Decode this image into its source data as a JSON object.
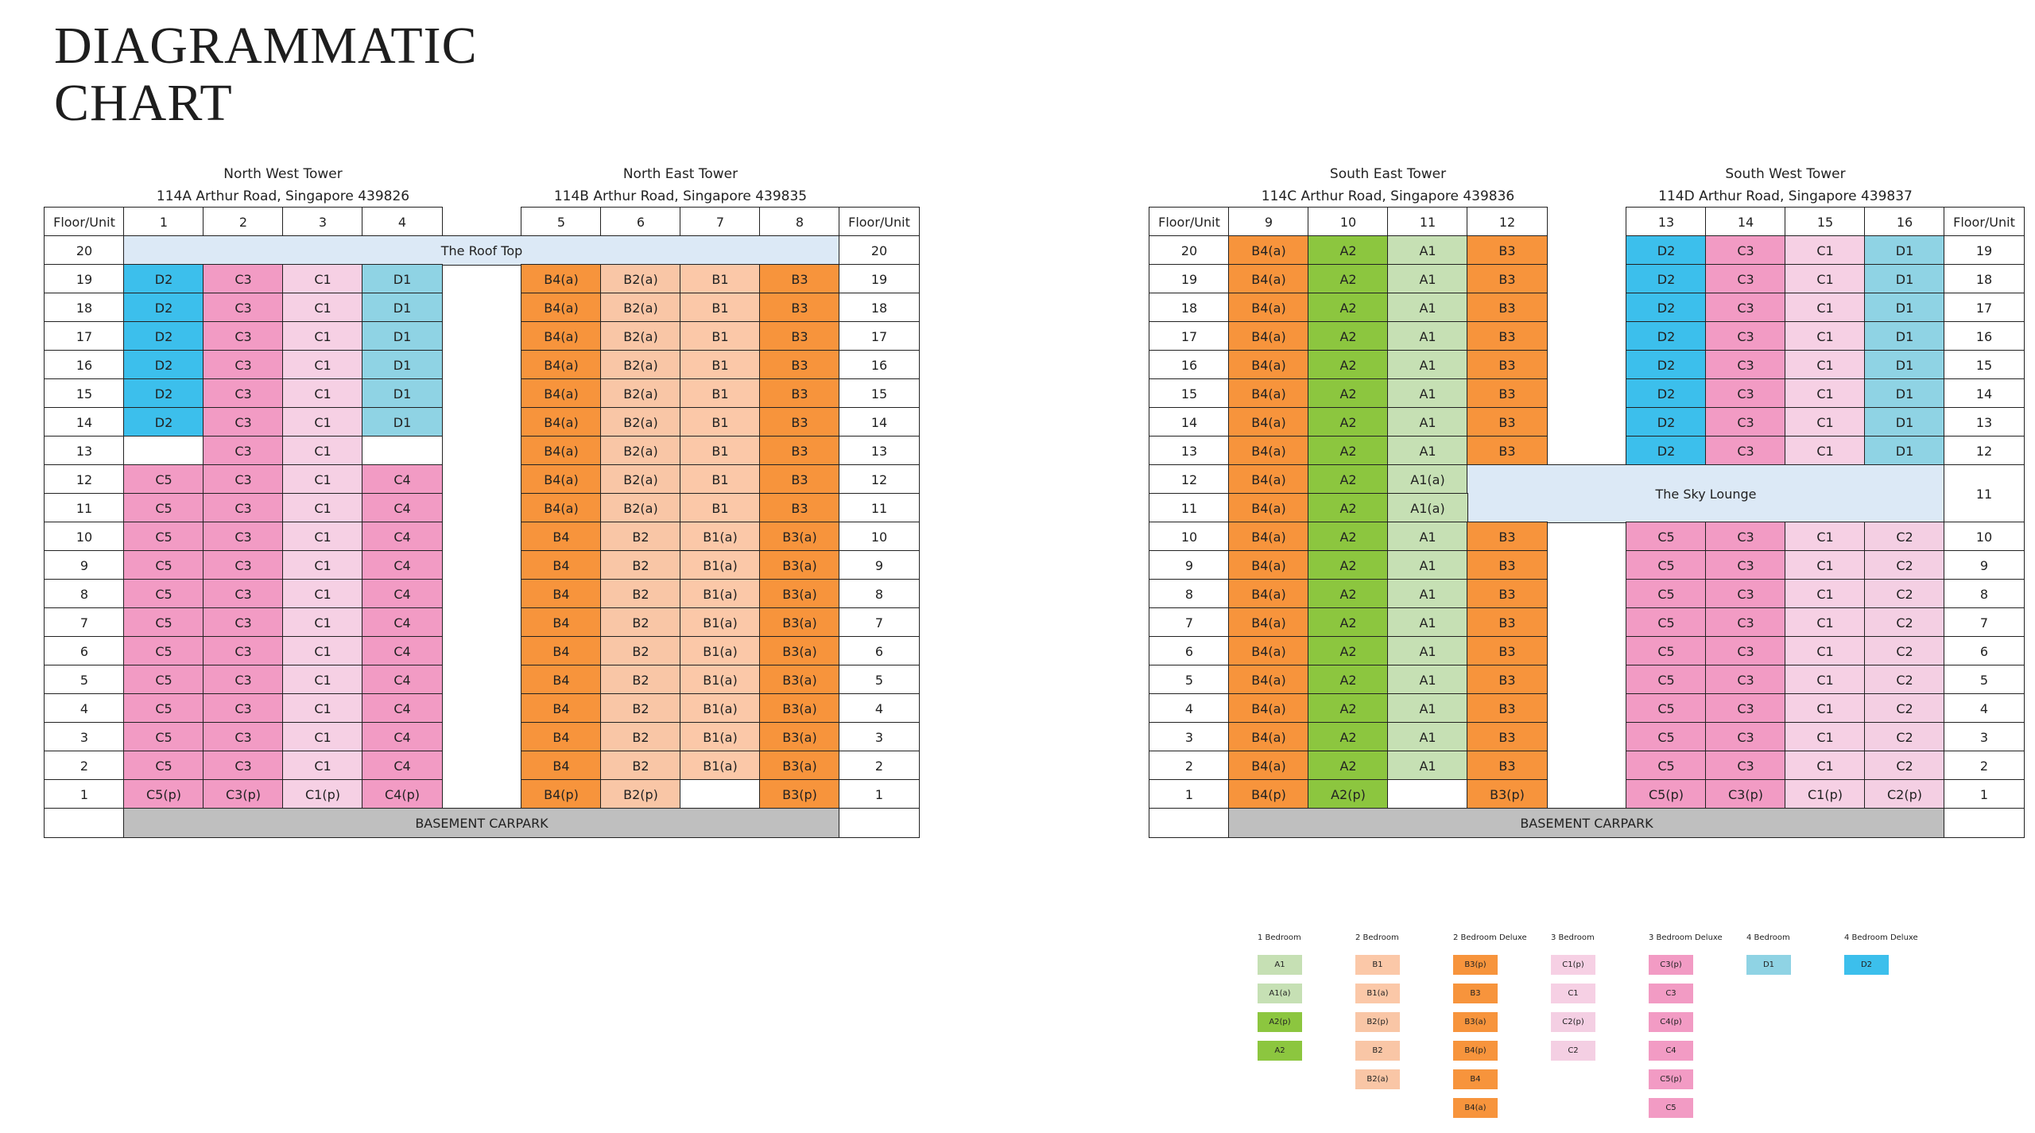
{
  "title": [
    "DIAGRAMMATIC",
    "CHART"
  ],
  "palette": {
    "A1": "#c6e0b4",
    "A2": "#8cc63f",
    "B1": "#fbc8a8",
    "B2": "#f9c6a6",
    "B3": "#f7943c",
    "B4": "#f7943c",
    "C1": "#f6d0e4",
    "C2": "#f4cfe3",
    "C3": "#f29bc4",
    "C4": "#f29bc4",
    "C5": "#f29bc4",
    "D1": "#8fd3e4",
    "D2": "#3cbfec"
  },
  "blocks": [
    {
      "towers": [
        {
          "name": "North West Tower",
          "address": "114A Arthur Road, Singapore 439826"
        },
        {
          "name": "North East Tower",
          "address": "114B Arthur Road, Singapore 439835"
        }
      ],
      "header": [
        "Floor/Unit",
        "1",
        "2",
        "3",
        "4",
        "5",
        "6",
        "7",
        "8",
        "Floor/Unit"
      ],
      "rows": [
        [
          "20",
          {
            "text": "The Roof Top",
            "colspan": 8,
            "color": "#dce9f6"
          },
          "20"
        ],
        [
          "19",
          "D2",
          "C3",
          "C1",
          "D1",
          "B4(a)",
          "B2(a)",
          "B1",
          "B3",
          "19"
        ],
        [
          "18",
          "D2",
          "C3",
          "C1",
          "D1",
          "B4(a)",
          "B2(a)",
          "B1",
          "B3",
          "18"
        ],
        [
          "17",
          "D2",
          "C3",
          "C1",
          "D1",
          "B4(a)",
          "B2(a)",
          "B1",
          "B3",
          "17"
        ],
        [
          "16",
          "D2",
          "C3",
          "C1",
          "D1",
          "B4(a)",
          "B2(a)",
          "B1",
          "B3",
          "16"
        ],
        [
          "15",
          "D2",
          "C3",
          "C1",
          "D1",
          "B4(a)",
          "B2(a)",
          "B1",
          "B3",
          "15"
        ],
        [
          "14",
          "D2",
          "C3",
          "C1",
          "D1",
          "B4(a)",
          "B2(a)",
          "B1",
          "B3",
          "14"
        ],
        [
          "13",
          null,
          "C3",
          "C1",
          null,
          "B4(a)",
          "B2(a)",
          "B1",
          "B3",
          "13"
        ],
        [
          "12",
          "C5",
          "C3",
          "C1",
          "C4",
          "B4(a)",
          "B2(a)",
          "B1",
          "B3",
          "12"
        ],
        [
          "11",
          "C5",
          "C3",
          "C1",
          "C4",
          "B4(a)",
          "B2(a)",
          "B1",
          "B3",
          "11"
        ],
        [
          "10",
          "C5",
          "C3",
          "C1",
          "C4",
          "B4",
          "B2",
          "B1(a)",
          "B3(a)",
          "10"
        ],
        [
          "9",
          "C5",
          "C3",
          "C1",
          "C4",
          "B4",
          "B2",
          "B1(a)",
          "B3(a)",
          "9"
        ],
        [
          "8",
          "C5",
          "C3",
          "C1",
          "C4",
          "B4",
          "B2",
          "B1(a)",
          "B3(a)",
          "8"
        ],
        [
          "7",
          "C5",
          "C3",
          "C1",
          "C4",
          "B4",
          "B2",
          "B1(a)",
          "B3(a)",
          "7"
        ],
        [
          "6",
          "C5",
          "C3",
          "C1",
          "C4",
          "B4",
          "B2",
          "B1(a)",
          "B3(a)",
          "6"
        ],
        [
          "5",
          "C5",
          "C3",
          "C1",
          "C4",
          "B4",
          "B2",
          "B1(a)",
          "B3(a)",
          "5"
        ],
        [
          "4",
          "C5",
          "C3",
          "C1",
          "C4",
          "B4",
          "B2",
          "B1(a)",
          "B3(a)",
          "4"
        ],
        [
          "3",
          "C5",
          "C3",
          "C1",
          "C4",
          "B4",
          "B2",
          "B1(a)",
          "B3(a)",
          "3"
        ],
        [
          "2",
          "C5",
          "C3",
          "C1",
          "C4",
          "B4",
          "B2",
          "B1(a)",
          "B3(a)",
          "2"
        ],
        [
          "1",
          "C5(p)",
          "C3(p)",
          "C1(p)",
          "C4(p)",
          "B4(p)",
          "B2(p)",
          null,
          "B3(p)",
          "1"
        ],
        [
          null,
          {
            "text": "BASEMENT CARPARK",
            "colspan": 8,
            "color": "#bfbfbf"
          },
          null
        ]
      ]
    },
    {
      "towers": [
        {
          "name": "South East Tower",
          "address": "114C Arthur Road, Singapore 439836"
        },
        {
          "name": "South West Tower",
          "address": "114D Arthur Road, Singapore 439837"
        }
      ],
      "header": [
        "Floor/Unit",
        "9",
        "10",
        "11",
        "12",
        "13",
        "14",
        "15",
        "16",
        "Floor/Unit"
      ],
      "rows": [
        [
          "20",
          "B4(a)",
          "A2",
          "A1",
          "B3",
          "D2",
          "C3",
          "C1",
          "D1",
          "19"
        ],
        [
          "19",
          "B4(a)",
          "A2",
          "A1",
          "B3",
          "D2",
          "C3",
          "C1",
          "D1",
          "18"
        ],
        [
          "18",
          "B4(a)",
          "A2",
          "A1",
          "B3",
          "D2",
          "C3",
          "C1",
          "D1",
          "17"
        ],
        [
          "17",
          "B4(a)",
          "A2",
          "A1",
          "B3",
          "D2",
          "C3",
          "C1",
          "D1",
          "16"
        ],
        [
          "16",
          "B4(a)",
          "A2",
          "A1",
          "B3",
          "D2",
          "C3",
          "C1",
          "D1",
          "15"
        ],
        [
          "15",
          "B4(a)",
          "A2",
          "A1",
          "B3",
          "D2",
          "C3",
          "C1",
          "D1",
          "14"
        ],
        [
          "14",
          "B4(a)",
          "A2",
          "A1",
          "B3",
          "D2",
          "C3",
          "C1",
          "D1",
          "13"
        ],
        [
          "13",
          "B4(a)",
          "A2",
          "A1",
          "B3",
          "D2",
          "C3",
          "C1",
          "D1",
          "12"
        ],
        [
          "12",
          "B4(a)",
          "A2",
          "A1(a)",
          {
            "text": "The Sky Lounge",
            "colspan": 5,
            "rowspan": 2,
            "color": "#dce9f6"
          },
          {
            "text": "11",
            "rowspan": 2
          }
        ],
        [
          "11",
          "B4(a)",
          "A2",
          "A1(a)"
        ],
        [
          "10",
          "B4(a)",
          "A2",
          "A1",
          "B3",
          "C5",
          "C3",
          "C1",
          "C2",
          "10"
        ],
        [
          "9",
          "B4(a)",
          "A2",
          "A1",
          "B3",
          "C5",
          "C3",
          "C1",
          "C2",
          "9"
        ],
        [
          "8",
          "B4(a)",
          "A2",
          "A1",
          "B3",
          "C5",
          "C3",
          "C1",
          "C2",
          "8"
        ],
        [
          "7",
          "B4(a)",
          "A2",
          "A1",
          "B3",
          "C5",
          "C3",
          "C1",
          "C2",
          "7"
        ],
        [
          "6",
          "B4(a)",
          "A2",
          "A1",
          "B3",
          "C5",
          "C3",
          "C1",
          "C2",
          "6"
        ],
        [
          "5",
          "B4(a)",
          "A2",
          "A1",
          "B3",
          "C5",
          "C3",
          "C1",
          "C2",
          "5"
        ],
        [
          "4",
          "B4(a)",
          "A2",
          "A1",
          "B3",
          "C5",
          "C3",
          "C1",
          "C2",
          "4"
        ],
        [
          "3",
          "B4(a)",
          "A2",
          "A1",
          "B3",
          "C5",
          "C3",
          "C1",
          "C2",
          "3"
        ],
        [
          "2",
          "B4(a)",
          "A2",
          "A1",
          "B3",
          "C5",
          "C3",
          "C1",
          "C2",
          "2"
        ],
        [
          "1",
          "B4(p)",
          "A2(p)",
          null,
          "B3(p)",
          "C5(p)",
          "C3(p)",
          "C1(p)",
          "C2(p)",
          "1"
        ],
        [
          null,
          {
            "text": "BASEMENT CARPARK",
            "colspan": 8,
            "color": "#bfbfbf"
          },
          null
        ]
      ]
    }
  ],
  "legend": [
    {
      "title": "1 Bedroom",
      "items": [
        "A1",
        "A1(a)",
        "A2(p)",
        "A2"
      ]
    },
    {
      "title": "2 Bedroom",
      "items": [
        "B1",
        "B1(a)",
        "B2(p)",
        "B2",
        "B2(a)"
      ]
    },
    {
      "title": "2 Bedroom Deluxe",
      "items": [
        "B3(p)",
        "B3",
        "B3(a)",
        "B4(p)",
        "B4",
        "B4(a)"
      ]
    },
    {
      "title": "3 Bedroom",
      "items": [
        "C1(p)",
        "C1",
        "C2(p)",
        "C2"
      ]
    },
    {
      "title": "3 Bedroom Deluxe",
      "items": [
        "C3(p)",
        "C3",
        "C4(p)",
        "C4",
        "C5(p)",
        "C5"
      ]
    },
    {
      "title": "4 Bedroom",
      "items": [
        "D1"
      ]
    },
    {
      "title": "4 Bedroom Deluxe",
      "items": [
        "D2"
      ]
    }
  ]
}
